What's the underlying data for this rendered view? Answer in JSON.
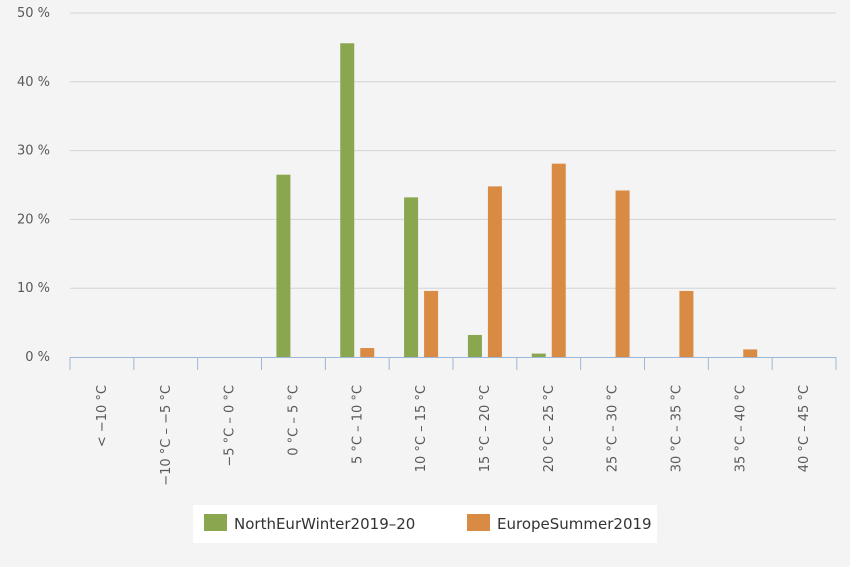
{
  "chart_data": {
    "type": "bar",
    "title": "",
    "xlabel": "",
    "ylabel": "",
    "categories": [
      "< −10 °C",
      "−10 °C – −5 °C",
      "−5 °C – 0 °C",
      "0 °C – 5 °C",
      "5 °C – 10 °C",
      "10 °C – 15 °C",
      "15 °C – 20 °C",
      "20 °C – 25 °C",
      "25 °C – 30 °C",
      "30 °C – 35 °C",
      "35 °C – 40 °C",
      "40 °C – 45 °C"
    ],
    "series": [
      {
        "name": "NorthEurWinter2019–20",
        "color": "#8aa64f",
        "values": [
          0,
          0,
          0,
          26.5,
          45.6,
          23.2,
          3.2,
          0.5,
          0,
          0,
          0,
          0
        ]
      },
      {
        "name": "EuropeSummer2019",
        "color": "#d98b43",
        "values": [
          0,
          0,
          0,
          0,
          1.3,
          9.6,
          24.8,
          28.1,
          24.2,
          9.6,
          1.1,
          0
        ]
      }
    ],
    "ylim": [
      0,
      50
    ],
    "yticks": [
      0,
      10,
      20,
      30,
      40,
      50
    ],
    "ytick_labels": [
      "0 %",
      "10 %",
      "20 %",
      "30 %",
      "40 %",
      "50 %"
    ],
    "grid": true,
    "legend": "bottom"
  }
}
